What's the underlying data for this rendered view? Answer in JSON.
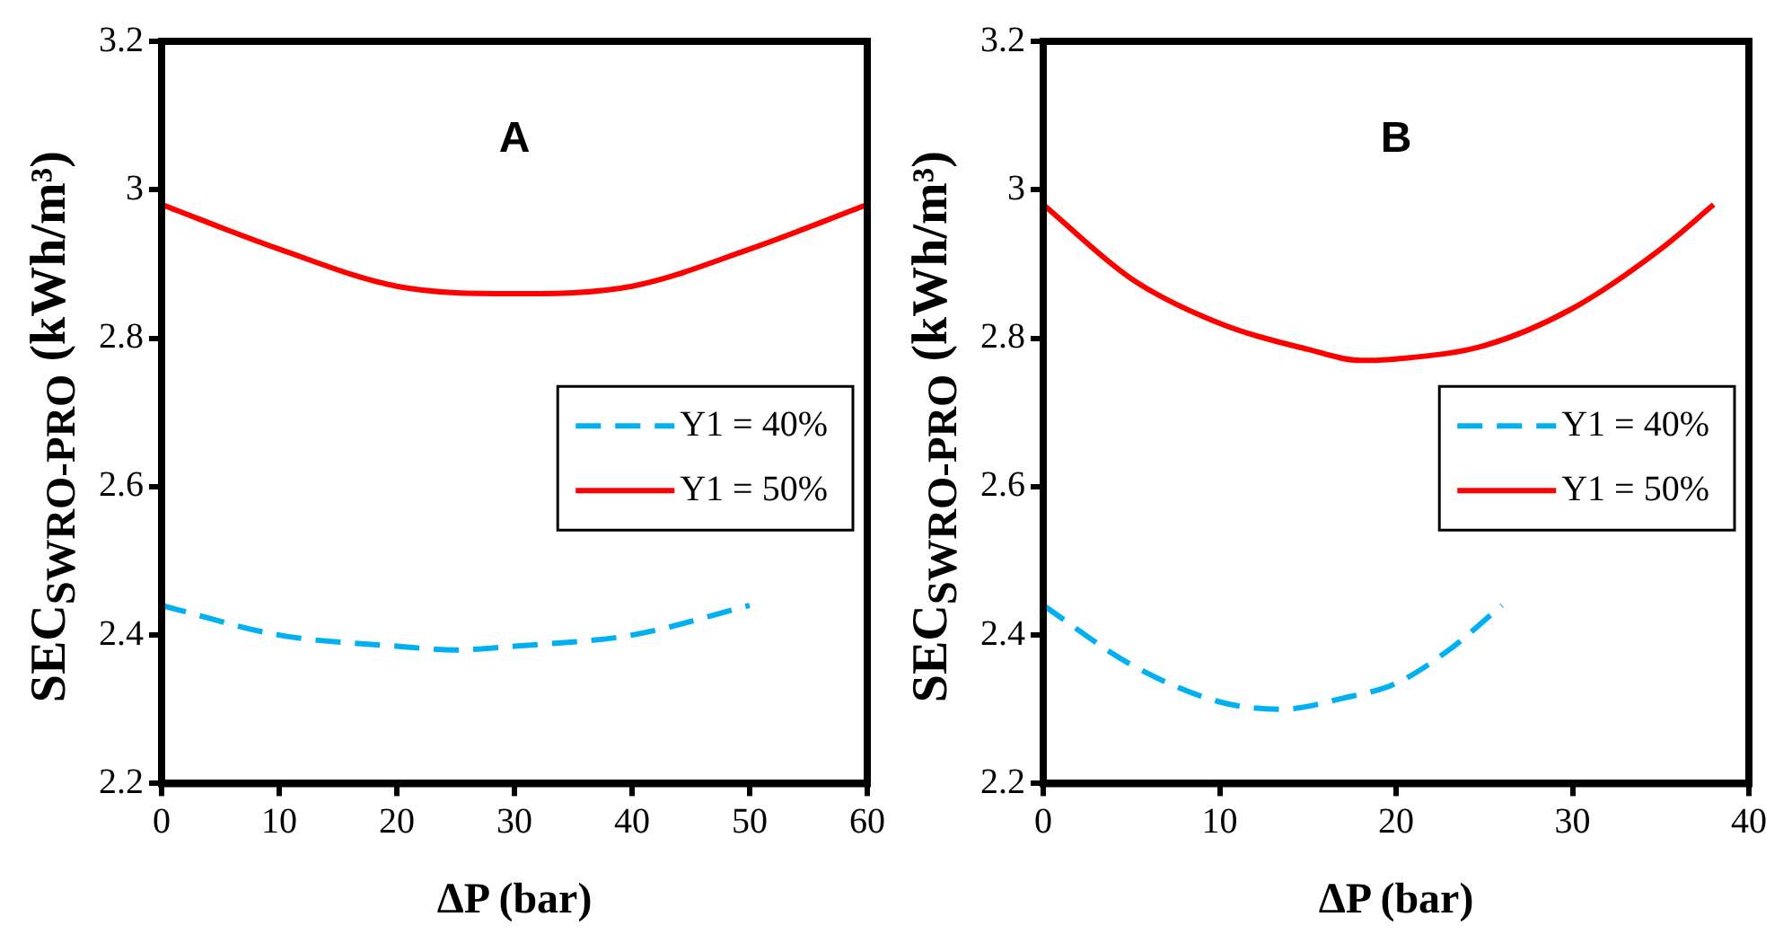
{
  "chart_data": [
    {
      "type": "line",
      "annotations": [
        "A"
      ],
      "xlabel": "ΔP (bar)",
      "ylabel": "SEC$_{SWRO-PRO}$ (kWh/m³)",
      "xlim": [
        0,
        60
      ],
      "xticks": [
        0,
        10,
        20,
        30,
        40,
        50,
        60
      ],
      "ylim": [
        2.2,
        3.2
      ],
      "yticks": [
        2.2,
        2.4,
        2.6,
        2.8,
        3,
        3.2
      ],
      "grid": false,
      "legend": "right",
      "marker": "none",
      "series": [
        {
          "name": "Y1 = 40%",
          "color": "#00b0f0",
          "line_style": "dashed",
          "x": [
            0,
            10,
            20,
            25,
            30,
            40,
            50
          ],
          "values": [
            2.44,
            2.4,
            2.385,
            2.38,
            2.385,
            2.4,
            2.44
          ]
        },
        {
          "name": "Y1 = 50%",
          "color": "#ff0000",
          "line_style": "solid",
          "x": [
            0,
            10,
            20,
            30,
            40,
            50,
            60
          ],
          "values": [
            2.98,
            2.92,
            2.87,
            2.86,
            2.87,
            2.92,
            2.98
          ]
        }
      ]
    },
    {
      "type": "line",
      "annotations": [
        "B"
      ],
      "xlabel": "ΔP (bar)",
      "ylabel": "SEC$_{SWRO-PRO}$ (kWh/m³)",
      "xlim": [
        0,
        40
      ],
      "xticks": [
        0,
        10,
        20,
        30,
        40
      ],
      "ylim": [
        2.2,
        3.2
      ],
      "yticks": [
        2.2,
        2.4,
        2.6,
        2.8,
        3,
        3.2
      ],
      "grid": false,
      "legend": "right",
      "marker": "none",
      "series": [
        {
          "name": "Y1 = 40%",
          "color": "#00b0f0",
          "line_style": "dashed",
          "x": [
            0,
            5,
            10,
            13.5,
            17,
            20,
            23,
            26
          ],
          "values": [
            2.44,
            2.36,
            2.31,
            2.3,
            2.315,
            2.335,
            2.38,
            2.44
          ]
        },
        {
          "name": "Y1 = 50%",
          "color": "#ff0000",
          "line_style": "solid",
          "x": [
            0,
            5,
            10,
            15,
            18,
            20,
            25,
            30,
            35,
            38
          ],
          "values": [
            2.98,
            2.88,
            2.82,
            2.785,
            2.77,
            2.772,
            2.79,
            2.84,
            2.92,
            2.98
          ]
        }
      ]
    }
  ]
}
